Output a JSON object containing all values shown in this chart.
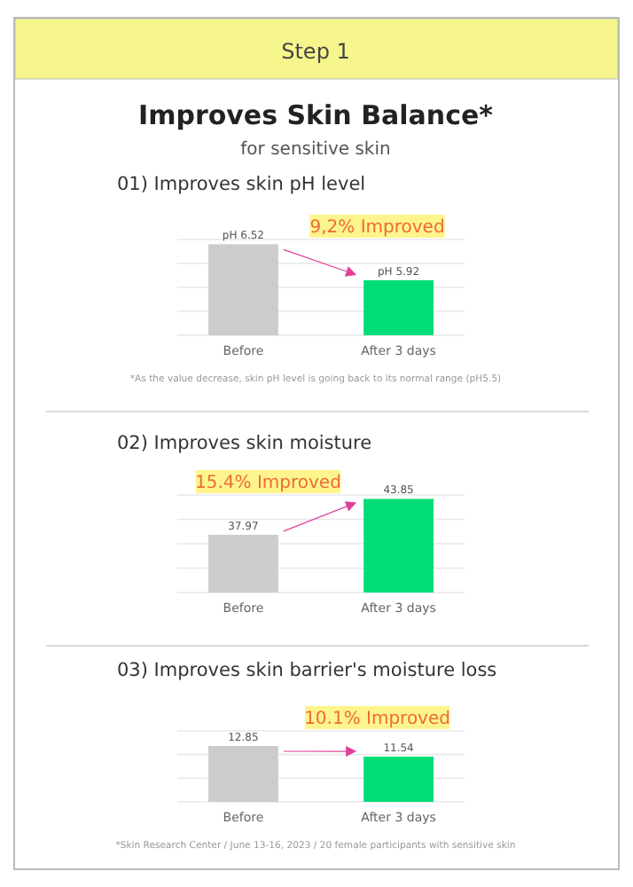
{
  "chart_data": [
    {
      "type": "other",
      "title": "Improves Skin Balance*",
      "subtitle": "for sensitive skin",
      "annotations": [
        "Step 1"
      ]
    },
    {
      "type": "bar",
      "title": "01) Improves skin pH level",
      "categories": [
        "Before",
        "After 3 days"
      ],
      "values": [
        6.52,
        5.92
      ],
      "value_labels": [
        "pH 6.52",
        "pH 5.92"
      ],
      "colors": [
        "#cccccc",
        "#00dd77"
      ],
      "ylim": [
        5,
        6.6
      ],
      "yticks": [
        {
          "value": 5,
          "label": null
        },
        {
          "value": 5.4,
          "label": null
        },
        {
          "value": 5.8,
          "label": null
        },
        {
          "value": 6.2,
          "label": null
        },
        {
          "value": 6.6,
          "label": null
        }
      ],
      "grid": "y",
      "tick_labels": "x",
      "annotations": [
        "9,2% Improved",
        "*As the value decrease, skin pH level is going back to its normal range (pH5.5)"
      ]
    },
    {
      "type": "bar",
      "title": "02) Improves skin moisture",
      "categories": [
        "Before",
        "After 3 days"
      ],
      "values": [
        37.97,
        43.85
      ],
      "data_labels": true,
      "colors": [
        "#cccccc",
        "#00dd77"
      ],
      "ylim": [
        28.5,
        44.5
      ],
      "yticks": [
        {
          "value": 28.5,
          "label": null
        },
        {
          "value": 32.5,
          "label": null
        },
        {
          "value": 36.5,
          "label": null
        },
        {
          "value": 40.5,
          "label": null
        },
        {
          "value": 44.5,
          "label": null
        }
      ],
      "grid": "y",
      "tick_labels": "x",
      "annotations": [
        "15.4% Improved"
      ]
    },
    {
      "type": "bar",
      "title": "03) Improves skin barrier's moisture loss",
      "categories": [
        "Before",
        "After 3 days"
      ],
      "values": [
        12.85,
        11.54
      ],
      "data_labels": true,
      "colors": [
        "#cccccc",
        "#00dd77"
      ],
      "ylim": [
        6,
        14.7
      ],
      "yticks": [
        {
          "value": 6,
          "label": null
        },
        {
          "value": 8.9,
          "label": null
        },
        {
          "value": 11.8,
          "label": null
        },
        {
          "value": 14.7,
          "label": null
        }
      ],
      "grid": "y",
      "tick_labels": "x",
      "annotations": [
        "10.1% Improved",
        "*Skin Research Center / June 13-16, 2023 / 20 female participants with sensitive skin"
      ]
    }
  ]
}
